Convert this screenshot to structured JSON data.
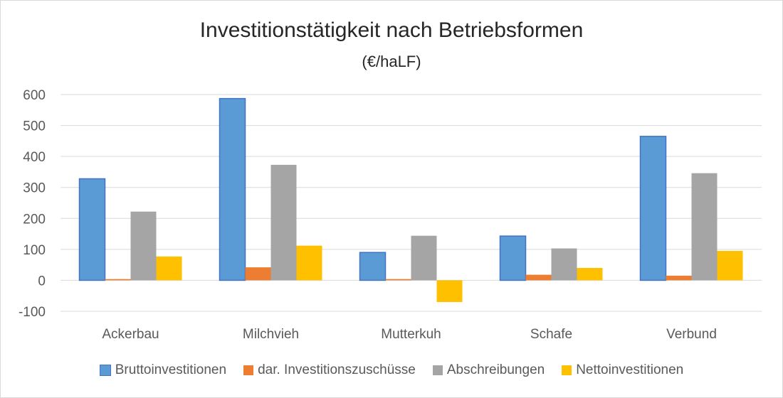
{
  "chart_data": {
    "type": "bar",
    "title": "Investitionstätigkeit nach Betriebsformen",
    "subtitle": "(€/haLF)",
    "categories": [
      "Ackerbau",
      "Milchvieh",
      "Mutterkuh",
      "Schafe",
      "Verbund"
    ],
    "series": [
      {
        "name": "Bruttoinvestitionen",
        "color": "#5b9bd5",
        "values": [
          328,
          587,
          90,
          143,
          465
        ]
      },
      {
        "name": "dar. Investitionszuschüsse",
        "color": "#ed7d31",
        "values": [
          4,
          42,
          4,
          18,
          15
        ]
      },
      {
        "name": "Abschreibungen",
        "color": "#a5a5a5",
        "values": [
          222,
          373,
          144,
          103,
          346
        ]
      },
      {
        "name": "Nettoinvestitionen",
        "color": "#ffc000",
        "values": [
          77,
          112,
          -70,
          40,
          95
        ]
      }
    ],
    "ylim": [
      -100,
      600
    ],
    "yticks": [
      600,
      500,
      400,
      300,
      200,
      100,
      0,
      -100
    ],
    "grid": true,
    "legend_position": "bottom"
  }
}
